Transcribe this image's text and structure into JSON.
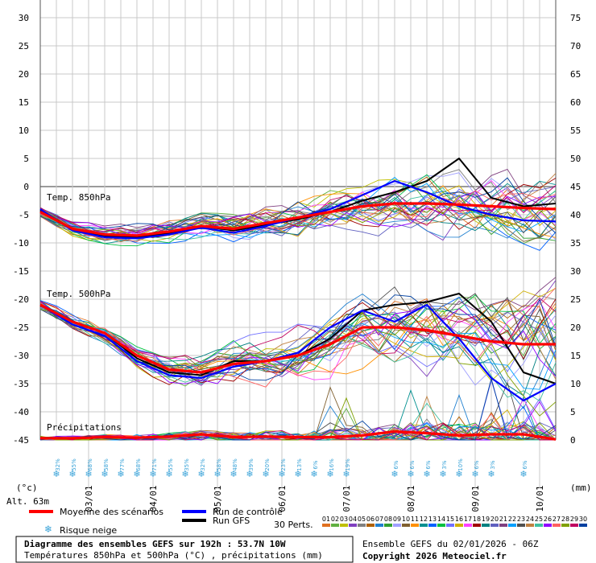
{
  "chart_data": {
    "type": "line",
    "title": "Diagramme des ensembles GEFS sur 192h : 53.7N 10W",
    "subtitle": "Températures 850hPa et 500hPa (°C) , précipitations (mm)",
    "run_info": "Ensemble GEFS du 02/01/2026 - 06Z",
    "copyright": "Copyright 2026 Meteociel.fr",
    "left_axis": {
      "unit": "(°c)",
      "ticks": [
        "30",
        "25",
        "20",
        "15",
        "10",
        "5",
        "0",
        "-5",
        "-10",
        "-15",
        "-20",
        "-25",
        "-30",
        "-35",
        "-40",
        "-45"
      ]
    },
    "right_axis": {
      "unit": "(mm)",
      "ticks": [
        "75",
        "70",
        "65",
        "60",
        "55",
        "50",
        "45",
        "40",
        "35",
        "30",
        "25",
        "20",
        "15",
        "10",
        "5",
        "0"
      ]
    },
    "altitude": "Alt. 63m",
    "x_dates": [
      "03/01",
      "04/01",
      "05/01",
      "06/01",
      "07/01",
      "08/01",
      "09/01",
      "10/01"
    ],
    "panel_labels": {
      "t850": "Temp. 850hPa",
      "t500": "Temp. 500hPa",
      "precip": "Précipitations"
    },
    "legend": {
      "mean": "Moyenne des scénarios",
      "control": "Run de contrôle",
      "gfs": "Run GFS",
      "snow": "Risque neige",
      "perts": "30 Perts."
    },
    "colors": {
      "mean": "#ff0000",
      "control": "#0000ff",
      "gfs": "#000000",
      "snow": "#3aa3d8",
      "grid": "#c8c8c8"
    },
    "snow_risk": [
      "32%",
      "55%",
      "68%",
      "58%",
      "77%",
      "68%",
      "71%",
      "55%",
      "35%",
      "32%",
      "58%",
      "48%",
      "39%",
      "20%",
      "23%",
      "13%",
      "6%",
      "16%",
      "19%",
      "6%",
      "6%",
      "6%",
      "3%",
      "10%",
      "6%",
      "3%",
      "6%"
    ],
    "series": [
      {
        "name": "Moyenne 850hPa",
        "x_hours": [
          0,
          12,
          24,
          36,
          48,
          60,
          72,
          84,
          96,
          108,
          120,
          132,
          144,
          156,
          168,
          180,
          192
        ],
        "values": [
          -4.5,
          -7.5,
          -8.5,
          -8.7,
          -8.0,
          -7.0,
          -7.5,
          -6.5,
          -5.5,
          -4.5,
          -3.5,
          -3.0,
          -3.0,
          -3.2,
          -3.5,
          -3.8,
          -4.0
        ]
      },
      {
        "name": "Contrôle 850hPa",
        "x_hours": [
          0,
          12,
          24,
          36,
          48,
          60,
          72,
          84,
          96,
          108,
          120,
          132,
          144,
          156,
          168,
          180,
          192
        ],
        "values": [
          -4.0,
          -7.8,
          -9.0,
          -9.2,
          -8.5,
          -7.3,
          -8.2,
          -7.0,
          -5.5,
          -4.0,
          -1.5,
          1.0,
          -1.0,
          -3.5,
          -5.0,
          -6.0,
          -6.2
        ]
      },
      {
        "name": "GFS 850hPa",
        "x_hours": [
          0,
          12,
          24,
          36,
          48,
          60,
          72,
          84,
          96,
          108,
          120,
          132,
          144,
          156,
          168,
          180,
          192
        ],
        "values": [
          -4.2,
          -7.5,
          -8.8,
          -9.0,
          -8.3,
          -7.0,
          -7.8,
          -6.8,
          -5.8,
          -4.5,
          -2.5,
          -1.0,
          1.0,
          5.0,
          -2.0,
          -3.5,
          -3.0
        ]
      },
      {
        "name": "Moyenne 500hPa",
        "x_hours": [
          0,
          12,
          24,
          36,
          48,
          60,
          72,
          84,
          96,
          108,
          120,
          132,
          144,
          156,
          168,
          180,
          192
        ],
        "values": [
          -21.0,
          -24.0,
          -26.0,
          -30.0,
          -32.5,
          -33.0,
          -31.5,
          -31.0,
          -30.0,
          -28.0,
          -25.0,
          -25.0,
          -25.5,
          -26.5,
          -27.5,
          -28.0,
          -28.0
        ]
      },
      {
        "name": "Contrôle 500hPa",
        "x_hours": [
          0,
          12,
          24,
          36,
          48,
          60,
          72,
          84,
          96,
          108,
          120,
          132,
          144,
          156,
          168,
          180,
          192
        ],
        "values": [
          -21.0,
          -24.5,
          -26.5,
          -31.0,
          -33.5,
          -34.0,
          -32.0,
          -31.0,
          -29.5,
          -25.0,
          -22.0,
          -24.0,
          -21.0,
          -27.0,
          -34.0,
          -38.0,
          -35.0
        ]
      },
      {
        "name": "GFS 500hPa",
        "x_hours": [
          0,
          12,
          24,
          36,
          48,
          60,
          72,
          84,
          96,
          108,
          120,
          132,
          144,
          156,
          168,
          180,
          192
        ],
        "values": [
          -21.0,
          -24.0,
          -26.0,
          -30.5,
          -33.0,
          -33.5,
          -31.0,
          -31.0,
          -30.0,
          -27.0,
          -22.0,
          -21.0,
          -20.5,
          -19.0,
          -24.0,
          -33.0,
          -35.0
        ]
      },
      {
        "name": "Moyenne précip (mm)",
        "x_hours": [
          0,
          12,
          24,
          36,
          48,
          60,
          72,
          84,
          96,
          108,
          120,
          132,
          144,
          156,
          168,
          180,
          192
        ],
        "values": [
          0.3,
          0.3,
          0.5,
          0.4,
          0.6,
          1.0,
          0.5,
          0.6,
          0.5,
          0.5,
          0.8,
          1.5,
          1.2,
          0.8,
          1.0,
          1.0,
          0.1
        ]
      }
    ],
    "ylim_left": [
      -45,
      30
    ],
    "ylim_right": [
      0,
      75
    ]
  }
}
